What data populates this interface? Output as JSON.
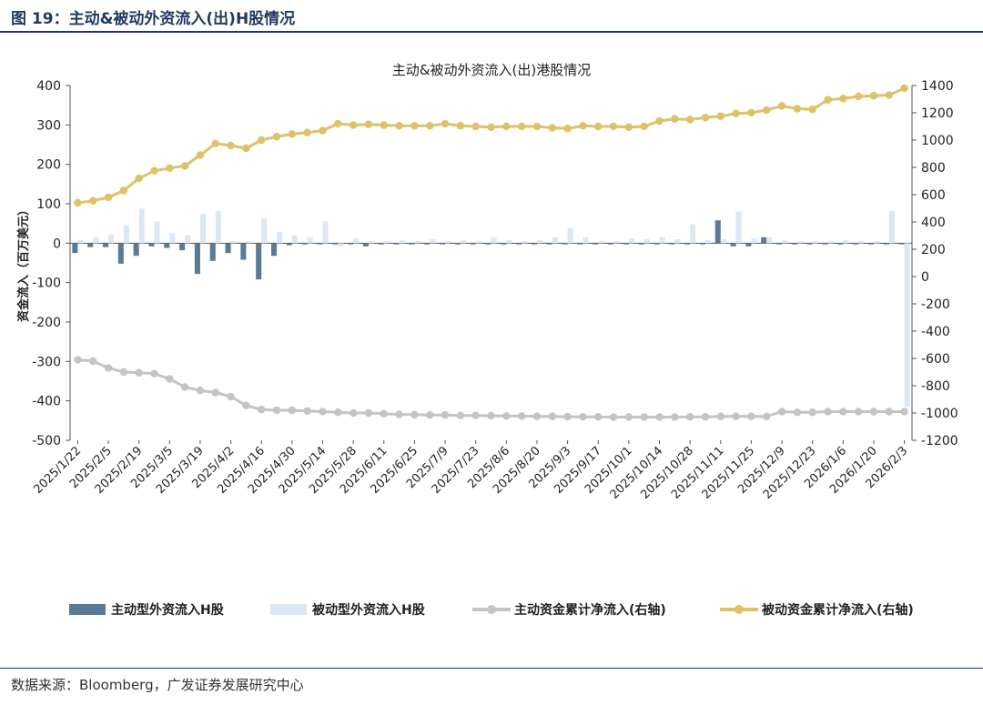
{
  "figure": {
    "label": "图 19：主动&被动外资流入(出)H股情况",
    "source": "数据来源：Bloomberg，广发证券发展研究中心"
  },
  "chart_data": {
    "type": "bar+line",
    "title": "主动&被动外资流入(出)港股情况",
    "ylabel": "资金流入（百万美元）",
    "ylim": [
      -500,
      400
    ],
    "y_ticks": [
      400,
      300,
      200,
      100,
      0,
      -100,
      -200,
      -300,
      -400,
      -500
    ],
    "y2lim": [
      -1200,
      1400
    ],
    "y2_ticks": [
      1400,
      1200,
      1000,
      800,
      600,
      400,
      200,
      0,
      -200,
      -400,
      -600,
      -800,
      -1000,
      -1200
    ],
    "x_tick_labels": [
      "2025/1/22",
      "2025/2/5",
      "2025/2/19",
      "2025/3/5",
      "2025/3/19",
      "2025/4/2",
      "2025/4/16",
      "2025/4/30",
      "2025/5/14",
      "2025/5/28",
      "2025/6/11",
      "2025/6/25",
      "2025/7/9",
      "2025/7/23",
      "2025/8/6",
      "2025/8/20",
      "2025/9/3",
      "2025/9/17",
      "2025/10/1",
      "2025/10/14",
      "2025/10/28",
      "2025/11/11",
      "2025/11/25",
      "2025/12/9",
      "2025/12/23",
      "2026/1/6",
      "2026/1/20",
      "2026/2/3"
    ],
    "n_weeks": 55,
    "series": [
      {
        "name": "主动型外资流入H股",
        "type": "bar",
        "axis": "left",
        "color": "#5a7a96",
        "values": [
          -25,
          -10,
          -10,
          -52,
          -32,
          -8,
          -12,
          -18,
          -78,
          -45,
          -25,
          -42,
          -92,
          -32,
          -5,
          -3,
          -3,
          -3,
          -3,
          -8,
          -3,
          -3,
          -3,
          -3,
          -3,
          -3,
          -3,
          -3,
          -3,
          -3,
          -3,
          -3,
          -3,
          -3,
          -3,
          -3,
          -3,
          -3,
          -3,
          -3,
          -3,
          -3,
          58,
          -8,
          -8,
          15,
          -3,
          -3,
          -3,
          -3,
          -3,
          -3,
          -3,
          -3,
          -3
        ]
      },
      {
        "name": "被动型外资流入H股",
        "type": "bar",
        "axis": "left",
        "color": "#dbe7f3",
        "values": [
          8,
          15,
          22,
          45,
          88,
          55,
          25,
          20,
          75,
          82,
          5,
          5,
          63,
          28,
          20,
          15,
          55,
          -8,
          12,
          5,
          5,
          8,
          5,
          10,
          5,
          8,
          5,
          15,
          8,
          5,
          8,
          15,
          38,
          15,
          5,
          5,
          12,
          10,
          15,
          10,
          48,
          8,
          10,
          80,
          12,
          15,
          8,
          5,
          5,
          5,
          8,
          5,
          5,
          82,
          -415
        ]
      },
      {
        "name": "主动资金累计净流入(右轴)",
        "type": "line",
        "axis": "right",
        "color": "#c4c4c4",
        "values": [
          -610,
          -620,
          -670,
          -700,
          -705,
          -712,
          -750,
          -810,
          -835,
          -850,
          -880,
          -945,
          -975,
          -980,
          -980,
          -985,
          -990,
          -995,
          -1000,
          -1000,
          -1005,
          -1010,
          -1012,
          -1015,
          -1015,
          -1018,
          -1018,
          -1020,
          -1022,
          -1023,
          -1025,
          -1025,
          -1027,
          -1028,
          -1028,
          -1030,
          -1030,
          -1030,
          -1030,
          -1030,
          -1028,
          -1028,
          -1025,
          -1025,
          -1025,
          -1025,
          -990,
          -995,
          -995,
          -990,
          -990,
          -990,
          -990,
          -990,
          -990
        ]
      },
      {
        "name": "被动资金累计净流入(右轴)",
        "type": "line",
        "axis": "right",
        "color": "#dfc169",
        "values": [
          540,
          555,
          580,
          630,
          720,
          775,
          795,
          810,
          890,
          975,
          960,
          940,
          1000,
          1025,
          1045,
          1055,
          1070,
          1120,
          1110,
          1115,
          1110,
          1105,
          1105,
          1105,
          1120,
          1105,
          1100,
          1095,
          1100,
          1100,
          1100,
          1090,
          1085,
          1105,
          1100,
          1100,
          1095,
          1100,
          1140,
          1155,
          1150,
          1165,
          1175,
          1195,
          1200,
          1220,
          1250,
          1230,
          1225,
          1295,
          1305,
          1320,
          1325,
          1330,
          1380
        ]
      }
    ],
    "legend_position": "bottom"
  }
}
